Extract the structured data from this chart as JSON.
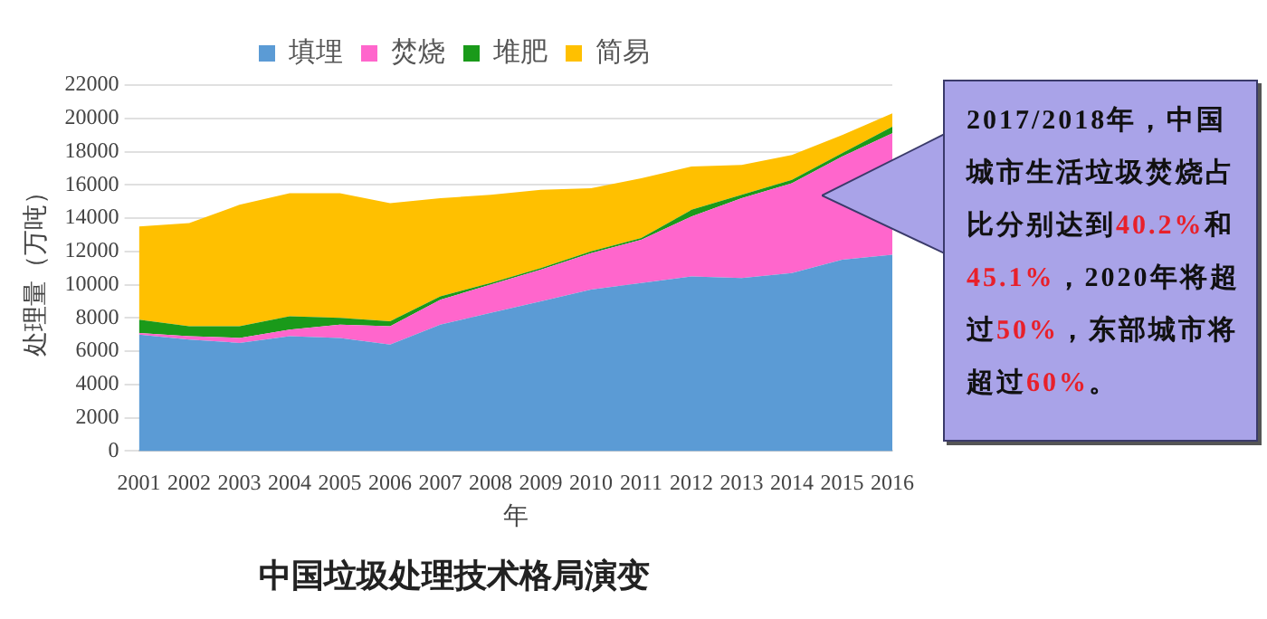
{
  "chart_data": {
    "type": "area",
    "title": "中国垃圾处理技术格局演变",
    "xlabel": "年",
    "ylabel": "处理量（万吨）",
    "categories": [
      "2001",
      "2002",
      "2003",
      "2004",
      "2005",
      "2006",
      "2007",
      "2008",
      "2009",
      "2010",
      "2011",
      "2012",
      "2013",
      "2014",
      "2015",
      "2016"
    ],
    "stacked": true,
    "series": [
      {
        "name": "填埋",
        "color": "#5b9bd5",
        "values": [
          7000,
          6700,
          6500,
          6900,
          6800,
          6400,
          7600,
          8300,
          9000,
          9700,
          10100,
          10500,
          10400,
          10700,
          11500,
          11800
        ]
      },
      {
        "name": "焚烧",
        "color": "#ff66cc",
        "values": [
          100,
          200,
          300,
          400,
          800,
          1100,
          1500,
          1700,
          1900,
          2200,
          2600,
          3600,
          4800,
          5400,
          6200,
          7300
        ]
      },
      {
        "name": "堆肥",
        "color": "#1a9a1a",
        "values": [
          800,
          600,
          700,
          800,
          400,
          300,
          200,
          100,
          100,
          100,
          100,
          400,
          200,
          200,
          200,
          400
        ]
      },
      {
        "name": "简易",
        "color": "#ffc000",
        "values": [
          5600,
          6200,
          7300,
          7400,
          7500,
          7100,
          5900,
          5300,
          4700,
          3800,
          3600,
          2600,
          1800,
          1500,
          1100,
          800
        ]
      }
    ],
    "ylim": [
      0,
      22000
    ],
    "yticks": [
      0,
      2000,
      4000,
      6000,
      8000,
      10000,
      12000,
      14000,
      16000,
      18000,
      20000,
      22000
    ],
    "grid": "y",
    "legend": "top",
    "annotations": [
      "2017/2018年，中国城市生活垃圾焚烧占比分别达到40.2%和45.1%，2020年将超过50%，东部城市将超过60%。"
    ]
  }
}
